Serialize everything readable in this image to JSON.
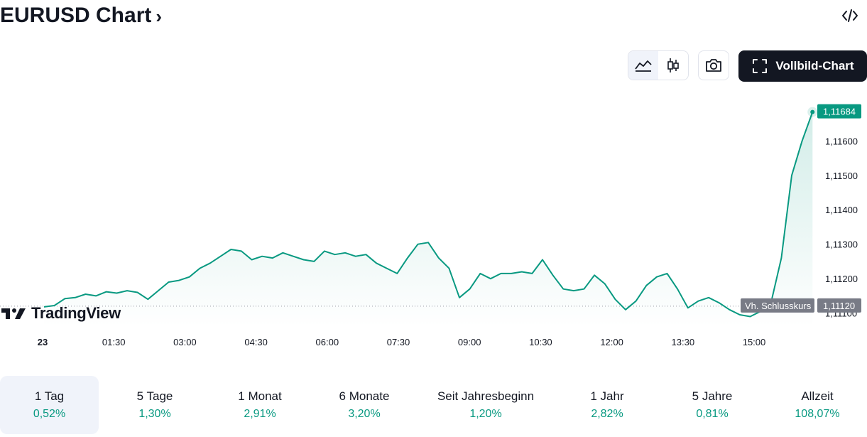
{
  "header": {
    "title": "EURUSD Chart",
    "chevron": "›",
    "embed_icon": "code-embed-icon"
  },
  "toolbar": {
    "line_icon": "area-chart-icon",
    "candle_icon": "candlestick-icon",
    "camera_icon": "camera-icon",
    "fullscreen_label": "Vollbild-Chart",
    "fullscreen_icon": "fullscreen-icon"
  },
  "brand": {
    "logo_text": "TradingView"
  },
  "colors": {
    "line": "#089981",
    "fill_top": "#089981",
    "text": "#131722",
    "axis_text": "#131722",
    "prev_close_badge": "#787b86",
    "last_price_badge": "#089981"
  },
  "chart_data": {
    "type": "area",
    "symbol": "EURUSD",
    "x_ticks": [
      "23",
      "01:30",
      "03:00",
      "04:30",
      "06:00",
      "07:30",
      "09:00",
      "10:30",
      "12:00",
      "13:30",
      "15:00"
    ],
    "y_ticks": [
      "1,11600",
      "1,11500",
      "1,11400",
      "1,11300",
      "1,11200",
      "1,11100"
    ],
    "ylim": [
      1.1106,
      1.1171
    ],
    "last_price": "1,11684",
    "prev_close_label": "Vh. Schlusskurs",
    "prev_close_value": "1,11120",
    "prev_close": 1.1112,
    "series": [
      {
        "points": [
          [
            0,
            1.11118
          ],
          [
            0.25,
            1.11122
          ],
          [
            0.5,
            1.11142
          ],
          [
            0.75,
            1.11145
          ],
          [
            1.0,
            1.11155
          ],
          [
            1.25,
            1.1115
          ],
          [
            1.5,
            1.11162
          ],
          [
            1.75,
            1.11158
          ],
          [
            2.0,
            1.11165
          ],
          [
            2.25,
            1.1116
          ],
          [
            2.5,
            1.1114
          ],
          [
            2.75,
            1.11165
          ],
          [
            3.0,
            1.1119
          ],
          [
            3.25,
            1.11195
          ],
          [
            3.5,
            1.11205
          ],
          [
            3.75,
            1.1123
          ],
          [
            4.0,
            1.11245
          ],
          [
            4.25,
            1.11265
          ],
          [
            4.5,
            1.11285
          ],
          [
            4.75,
            1.1128
          ],
          [
            5.0,
            1.11255
          ],
          [
            5.25,
            1.11265
          ],
          [
            5.5,
            1.1126
          ],
          [
            5.75,
            1.11275
          ],
          [
            6.0,
            1.11265
          ],
          [
            6.25,
            1.11255
          ],
          [
            6.5,
            1.1125
          ],
          [
            6.75,
            1.1128
          ],
          [
            7.0,
            1.1127
          ],
          [
            7.25,
            1.11275
          ],
          [
            7.5,
            1.11265
          ],
          [
            7.75,
            1.1127
          ],
          [
            8.0,
            1.11245
          ],
          [
            8.25,
            1.1123
          ],
          [
            8.5,
            1.11215
          ],
          [
            8.75,
            1.1126
          ],
          [
            9.0,
            1.113
          ],
          [
            9.25,
            1.11305
          ],
          [
            9.5,
            1.1126
          ],
          [
            9.75,
            1.1123
          ],
          [
            10.0,
            1.11145
          ],
          [
            10.25,
            1.1117
          ],
          [
            10.5,
            1.11215
          ],
          [
            10.75,
            1.112
          ],
          [
            11.0,
            1.11215
          ],
          [
            11.25,
            1.11215
          ],
          [
            11.5,
            1.1122
          ],
          [
            11.75,
            1.11215
          ],
          [
            12.0,
            1.11255
          ],
          [
            12.25,
            1.1121
          ],
          [
            12.5,
            1.1117
          ],
          [
            12.75,
            1.11165
          ],
          [
            13.0,
            1.1117
          ],
          [
            13.25,
            1.1121
          ],
          [
            13.5,
            1.11185
          ],
          [
            13.75,
            1.1114
          ],
          [
            14.0,
            1.1111
          ],
          [
            14.25,
            1.11135
          ],
          [
            14.5,
            1.1118
          ],
          [
            14.75,
            1.11205
          ],
          [
            15.0,
            1.11215
          ],
          [
            15.25,
            1.1117
          ],
          [
            15.5,
            1.11115
          ],
          [
            15.75,
            1.11135
          ],
          [
            16.0,
            1.11145
          ],
          [
            16.25,
            1.1113
          ],
          [
            16.5,
            1.1111
          ],
          [
            16.75,
            1.11095
          ],
          [
            17.0,
            1.1109
          ],
          [
            17.25,
            1.11105
          ],
          [
            17.5,
            1.1113
          ],
          [
            17.75,
            1.1126
          ],
          [
            18.0,
            1.115
          ],
          [
            18.25,
            1.116
          ],
          [
            18.5,
            1.11684
          ]
        ]
      }
    ]
  },
  "periods": [
    {
      "label": "1 Tag",
      "value": "0,52%",
      "active": true
    },
    {
      "label": "5 Tage",
      "value": "1,30%"
    },
    {
      "label": "1 Monat",
      "value": "2,91%"
    },
    {
      "label": "6 Monate",
      "value": "3,20%"
    },
    {
      "label": "Seit Jahresbeginn",
      "value": "1,20%"
    },
    {
      "label": "1 Jahr",
      "value": "2,82%"
    },
    {
      "label": "5 Jahre",
      "value": "0,81%"
    },
    {
      "label": "Allzeit",
      "value": "108,07%"
    }
  ]
}
